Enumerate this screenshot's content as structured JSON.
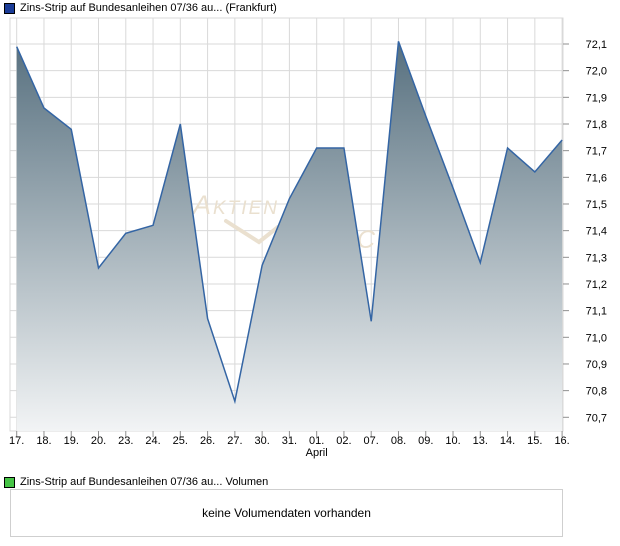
{
  "header": {
    "legend_label": "Zins-Strip auf Bundesanleihen 07/36 au... (Frankfurt)",
    "legend_color": "#1b3c97"
  },
  "volume": {
    "legend_label": "Zins-Strip auf Bundesanleihen 07/36 au... Volumen",
    "legend_color": "#46c446",
    "message": "keine Volumendaten vorhanden"
  },
  "watermark": {
    "part1": "Aktien",
    "part2": "Check",
    "color": "#eae0cf"
  },
  "chart_data": {
    "type": "area",
    "title": "Zins-Strip auf Bundesanleihen 07/36 au... (Frankfurt)",
    "x_labels": [
      "17.",
      "18.",
      "19.",
      "20.",
      "23.",
      "24.",
      "25.",
      "26.",
      "27.",
      "30.",
      "31.",
      "01.",
      "02.",
      "07.",
      "08.",
      "09.",
      "10.",
      "13.",
      "14.",
      "15.",
      "16."
    ],
    "month_label": {
      "text": "April",
      "index": 11
    },
    "values": [
      72.09,
      71.86,
      71.78,
      71.26,
      71.39,
      71.42,
      71.8,
      71.07,
      70.76,
      71.27,
      71.52,
      71.71,
      71.71,
      71.06,
      72.11,
      71.83,
      71.56,
      71.28,
      71.71,
      71.62,
      71.74
    ],
    "y_ticks": [
      72.1,
      72.0,
      71.9,
      71.8,
      71.7,
      71.6,
      71.5,
      71.4,
      71.3,
      71.2,
      71.1,
      71.0,
      70.9,
      70.8,
      70.7
    ],
    "ylim": [
      70.65,
      72.2
    ],
    "decimal_separator": ",",
    "grid": true,
    "legend_position": "top-left",
    "xlabel": "",
    "ylabel": "",
    "line_color": "#3465a4",
    "fill_top": "#57707f",
    "fill_bottom": "#f2f4f5",
    "grid_color": "#d9d9d9",
    "tick_color": "#8f8f8f",
    "label_color": "#000000"
  }
}
